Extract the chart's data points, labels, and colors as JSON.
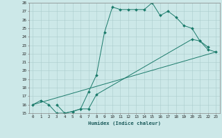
{
  "xlabel": "Humidex (Indice chaleur)",
  "xlim": [
    -0.5,
    23.5
  ],
  "ylim": [
    15,
    28
  ],
  "xticks": [
    0,
    1,
    2,
    3,
    4,
    5,
    6,
    7,
    8,
    9,
    10,
    11,
    12,
    13,
    14,
    15,
    16,
    17,
    18,
    19,
    20,
    21,
    22,
    23
  ],
  "yticks": [
    15,
    16,
    17,
    18,
    19,
    20,
    21,
    22,
    23,
    24,
    25,
    26,
    27,
    28
  ],
  "background_color": "#cce8e8",
  "grid_color": "#aacccc",
  "line_color": "#1a7a6a",
  "series": [
    {
      "x": [
        0,
        1,
        2,
        3,
        4,
        5,
        6,
        7,
        8,
        9,
        10,
        11,
        12,
        13,
        14,
        15,
        16,
        17,
        18,
        19,
        20,
        21,
        22,
        23
      ],
      "y": [
        16.0,
        16.5,
        16.0,
        15.0,
        15.0,
        15.2,
        15.5,
        17.5,
        19.5,
        24.5,
        27.5,
        27.2,
        27.2,
        27.2,
        27.2,
        28.0,
        26.5,
        27.0,
        26.3,
        25.3,
        25.0,
        23.5,
        22.5,
        22.2
      ],
      "marker": true
    },
    {
      "x": [
        3,
        4,
        5,
        6,
        7,
        8,
        20,
        21,
        22
      ],
      "y": [
        16.0,
        15.0,
        15.2,
        15.5,
        15.5,
        17.2,
        23.7,
        23.5,
        22.8
      ],
      "marker": true
    },
    {
      "x": [
        0,
        23
      ],
      "y": [
        16.0,
        22.2
      ],
      "marker": false
    }
  ]
}
